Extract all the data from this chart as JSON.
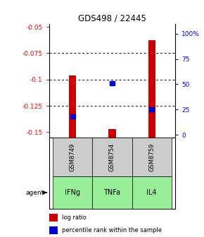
{
  "title": "GDS498 / 22445",
  "samples": [
    "GSM8749",
    "GSM8754",
    "GSM8759"
  ],
  "agents": [
    "IFNg",
    "TNFa",
    "IL4"
  ],
  "log_ratios": [
    -0.096,
    -0.147,
    -0.063
  ],
  "percentile_ranks": [
    17,
    50,
    24
  ],
  "ylim_left": [
    -0.155,
    -0.047
  ],
  "ylim_right": [
    -2.7,
    110
  ],
  "yticks_left": [
    -0.15,
    -0.125,
    -0.1,
    -0.075,
    -0.05
  ],
  "ytick_labels_left": [
    "-0.15",
    "-0.125",
    "-0.1",
    "-0.075",
    "-0.05"
  ],
  "yticks_right": [
    0,
    25,
    50,
    75,
    100
  ],
  "ytick_labels_right": [
    "0",
    "25",
    "50",
    "75",
    "100%"
  ],
  "bar_color": "#cc0000",
  "percentile_color": "#0000cc",
  "agent_color_light": "#aaffaa",
  "agent_color_mid": "#88ee88",
  "agent_color_dark": "#55dd55",
  "sample_box_color": "#cccccc",
  "grid_ticks": [
    -0.075,
    -0.1,
    -0.125
  ]
}
